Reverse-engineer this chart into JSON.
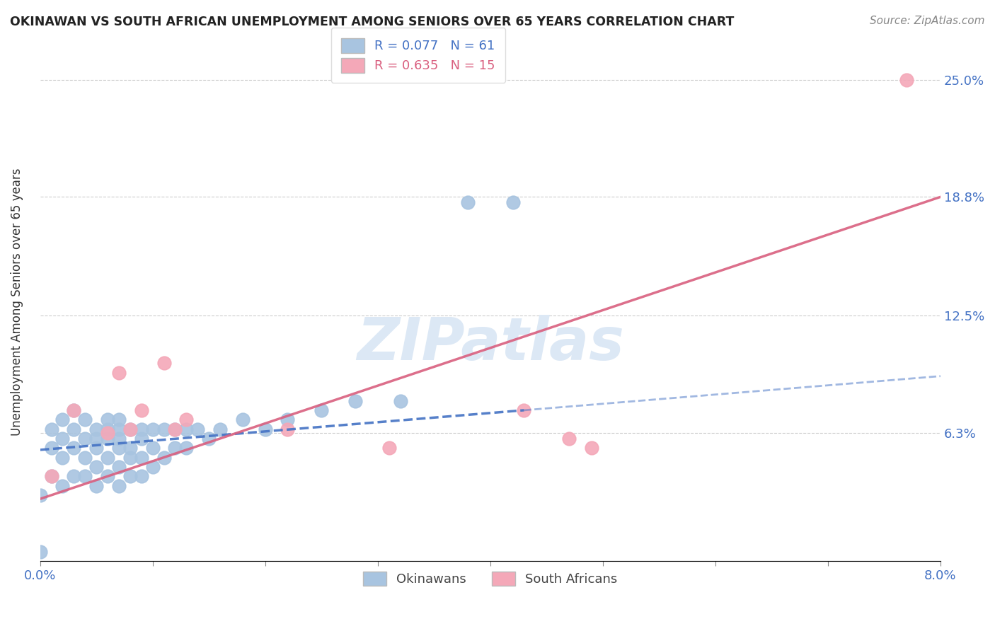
{
  "title": "OKINAWAN VS SOUTH AFRICAN UNEMPLOYMENT AMONG SENIORS OVER 65 YEARS CORRELATION CHART",
  "source": "Source: ZipAtlas.com",
  "ylabel": "Unemployment Among Seniors over 65 years",
  "xlim": [
    0.0,
    0.08
  ],
  "ylim": [
    -0.005,
    0.27
  ],
  "ytick_vals": [
    0.063,
    0.125,
    0.188,
    0.25
  ],
  "ytick_labels": [
    "6.3%",
    "12.5%",
    "18.8%",
    "25.0%"
  ],
  "xtick_vals": [
    0.0,
    0.01,
    0.02,
    0.03,
    0.04,
    0.05,
    0.06,
    0.07,
    0.08
  ],
  "xtick_labels": [
    "0.0%",
    "",
    "",
    "",
    "",
    "",
    "",
    "",
    "8.0%"
  ],
  "legend1_label": "R = 0.077   N = 61",
  "legend2_label": "R = 0.635   N = 15",
  "legend_bottom_label1": "Okinawans",
  "legend_bottom_label2": "South Africans",
  "okinawan_color": "#a8c4e0",
  "southafrican_color": "#f4a8b8",
  "trendline_okinawan_color": "#4472c4",
  "trendline_southafrican_color": "#d95f7f",
  "watermark_color": "#dce8f5",
  "background_color": "#ffffff",
  "grid_color": "#cccccc",
  "okinawan_x": [
    0.0,
    0.0,
    0.001,
    0.001,
    0.001,
    0.002,
    0.002,
    0.002,
    0.002,
    0.003,
    0.003,
    0.003,
    0.003,
    0.004,
    0.004,
    0.004,
    0.004,
    0.005,
    0.005,
    0.005,
    0.005,
    0.005,
    0.006,
    0.006,
    0.006,
    0.006,
    0.006,
    0.007,
    0.007,
    0.007,
    0.007,
    0.007,
    0.007,
    0.008,
    0.008,
    0.008,
    0.008,
    0.009,
    0.009,
    0.009,
    0.009,
    0.01,
    0.01,
    0.01,
    0.011,
    0.011,
    0.012,
    0.012,
    0.013,
    0.013,
    0.014,
    0.015,
    0.016,
    0.018,
    0.02,
    0.022,
    0.025,
    0.028,
    0.032,
    0.038,
    0.042
  ],
  "okinawan_y": [
    0.03,
    0.0,
    0.04,
    0.055,
    0.065,
    0.035,
    0.05,
    0.06,
    0.07,
    0.04,
    0.055,
    0.065,
    0.075,
    0.04,
    0.05,
    0.06,
    0.07,
    0.035,
    0.045,
    0.055,
    0.06,
    0.065,
    0.04,
    0.05,
    0.06,
    0.065,
    0.07,
    0.035,
    0.045,
    0.055,
    0.06,
    0.065,
    0.07,
    0.04,
    0.05,
    0.055,
    0.065,
    0.04,
    0.05,
    0.06,
    0.065,
    0.045,
    0.055,
    0.065,
    0.05,
    0.065,
    0.055,
    0.065,
    0.055,
    0.065,
    0.065,
    0.06,
    0.065,
    0.07,
    0.065,
    0.07,
    0.075,
    0.08,
    0.08,
    0.185,
    0.185
  ],
  "southafrican_x": [
    0.001,
    0.003,
    0.006,
    0.007,
    0.008,
    0.009,
    0.011,
    0.012,
    0.013,
    0.022,
    0.031,
    0.043,
    0.047,
    0.049,
    0.077
  ],
  "southafrican_y": [
    0.04,
    0.075,
    0.063,
    0.095,
    0.065,
    0.075,
    0.1,
    0.065,
    0.07,
    0.065,
    0.055,
    0.075,
    0.06,
    0.055,
    0.25
  ],
  "okin_trend_x0": 0.0,
  "okin_trend_x1": 0.043,
  "okin_trend_y0": 0.054,
  "okin_trend_y1": 0.075,
  "sa_trend_x0": 0.0,
  "sa_trend_x1": 0.08,
  "sa_trend_y0": 0.028,
  "sa_trend_y1": 0.188
}
